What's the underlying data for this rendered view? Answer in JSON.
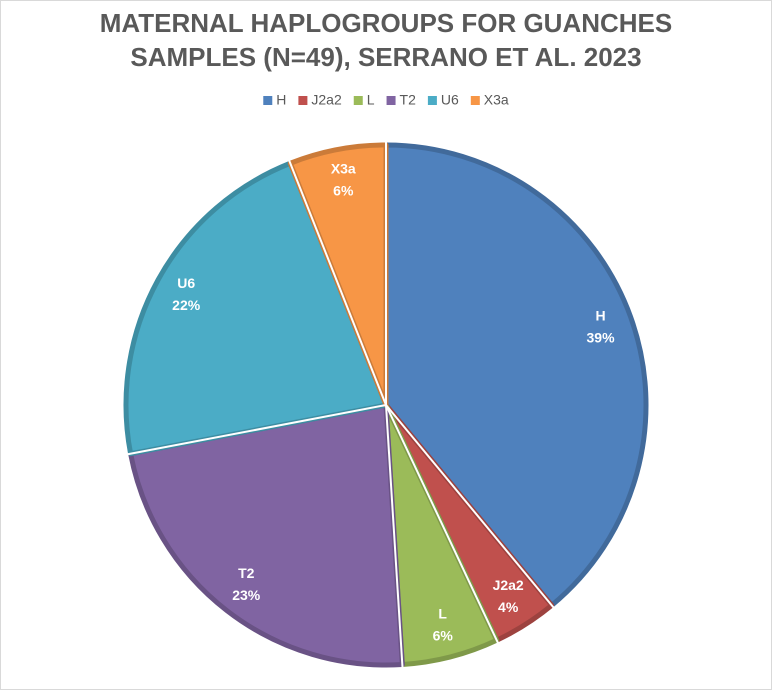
{
  "chart_data": {
    "type": "pie",
    "title": "MATERNAL HAPLOGROUPS FOR GUANCHES SAMPLES (N=49), SERRANO ET AL. 2023",
    "categories": [
      "H",
      "J2a2",
      "L",
      "T2",
      "U6",
      "X3a"
    ],
    "values": [
      39,
      4,
      6,
      23,
      22,
      6
    ],
    "value_labels": [
      "39%",
      "4%",
      "6%",
      "23%",
      "22%",
      "6%"
    ],
    "colors": [
      "#4f81bd",
      "#c0504d",
      "#9bbb59",
      "#8064a2",
      "#4bacc6",
      "#f79646"
    ],
    "legend": "top"
  }
}
